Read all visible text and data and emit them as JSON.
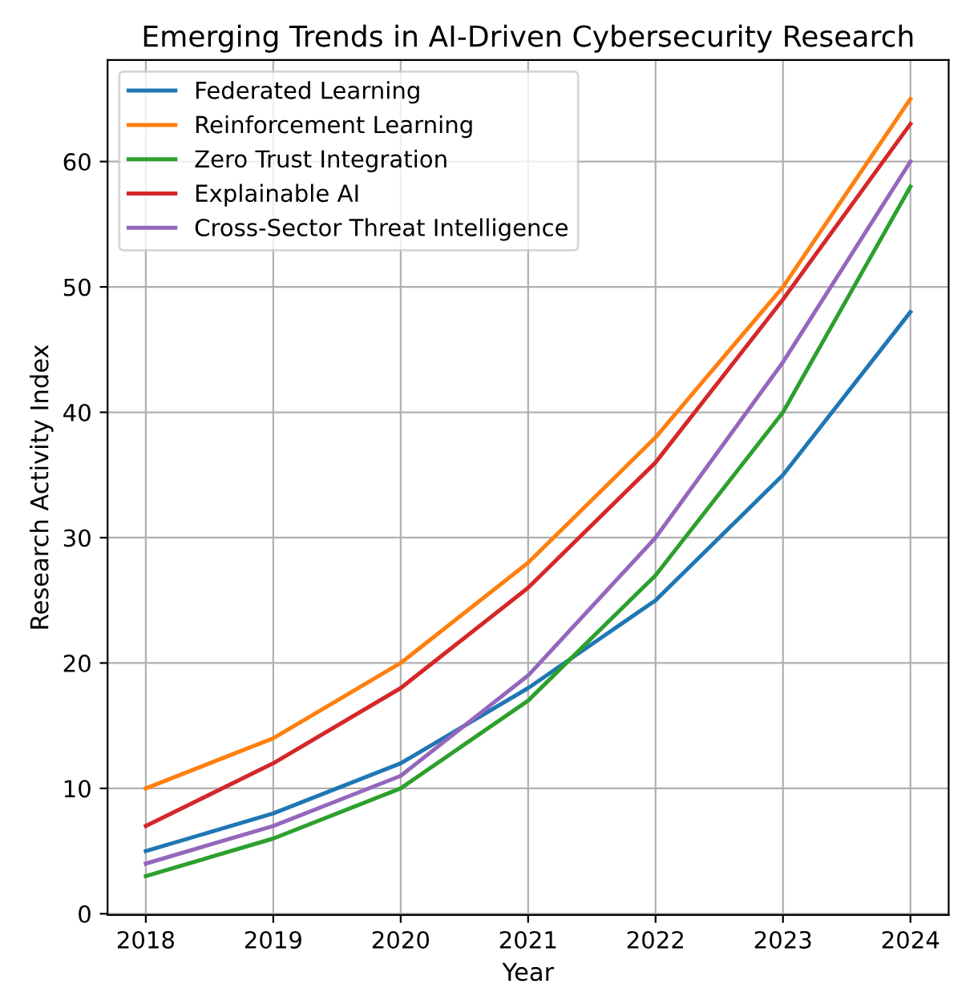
{
  "chart_data": {
    "type": "line",
    "title": "Emerging Trends in AI-Driven Cybersecurity Research",
    "xlabel": "Year",
    "ylabel": "Research Activity Index",
    "x": [
      2018,
      2019,
      2020,
      2021,
      2022,
      2023,
      2024
    ],
    "series": [
      {
        "name": "Federated Learning",
        "color": "#1f77b4",
        "values": [
          5,
          8,
          12,
          18,
          25,
          35,
          48
        ]
      },
      {
        "name": "Reinforcement Learning",
        "color": "#ff7f0e",
        "values": [
          10,
          14,
          20,
          28,
          38,
          50,
          65
        ]
      },
      {
        "name": "Zero Trust Integration",
        "color": "#2ca02c",
        "values": [
          3,
          6,
          10,
          17,
          27,
          40,
          58
        ]
      },
      {
        "name": "Explainable AI",
        "color": "#d62728",
        "values": [
          7,
          12,
          18,
          26,
          36,
          49,
          63
        ]
      },
      {
        "name": "Cross-Sector Threat Intelligence",
        "color": "#9467bd",
        "values": [
          4,
          7,
          11,
          19,
          30,
          44,
          60
        ]
      }
    ],
    "xlim": [
      2017.7,
      2024.3
    ],
    "ylim": [
      -0.1,
      68.1
    ],
    "xticks": [
      2018,
      2019,
      2020,
      2021,
      2022,
      2023,
      2024
    ],
    "yticks": [
      0,
      10,
      20,
      30,
      40,
      50,
      60
    ],
    "grid": true,
    "legend": "top left"
  }
}
